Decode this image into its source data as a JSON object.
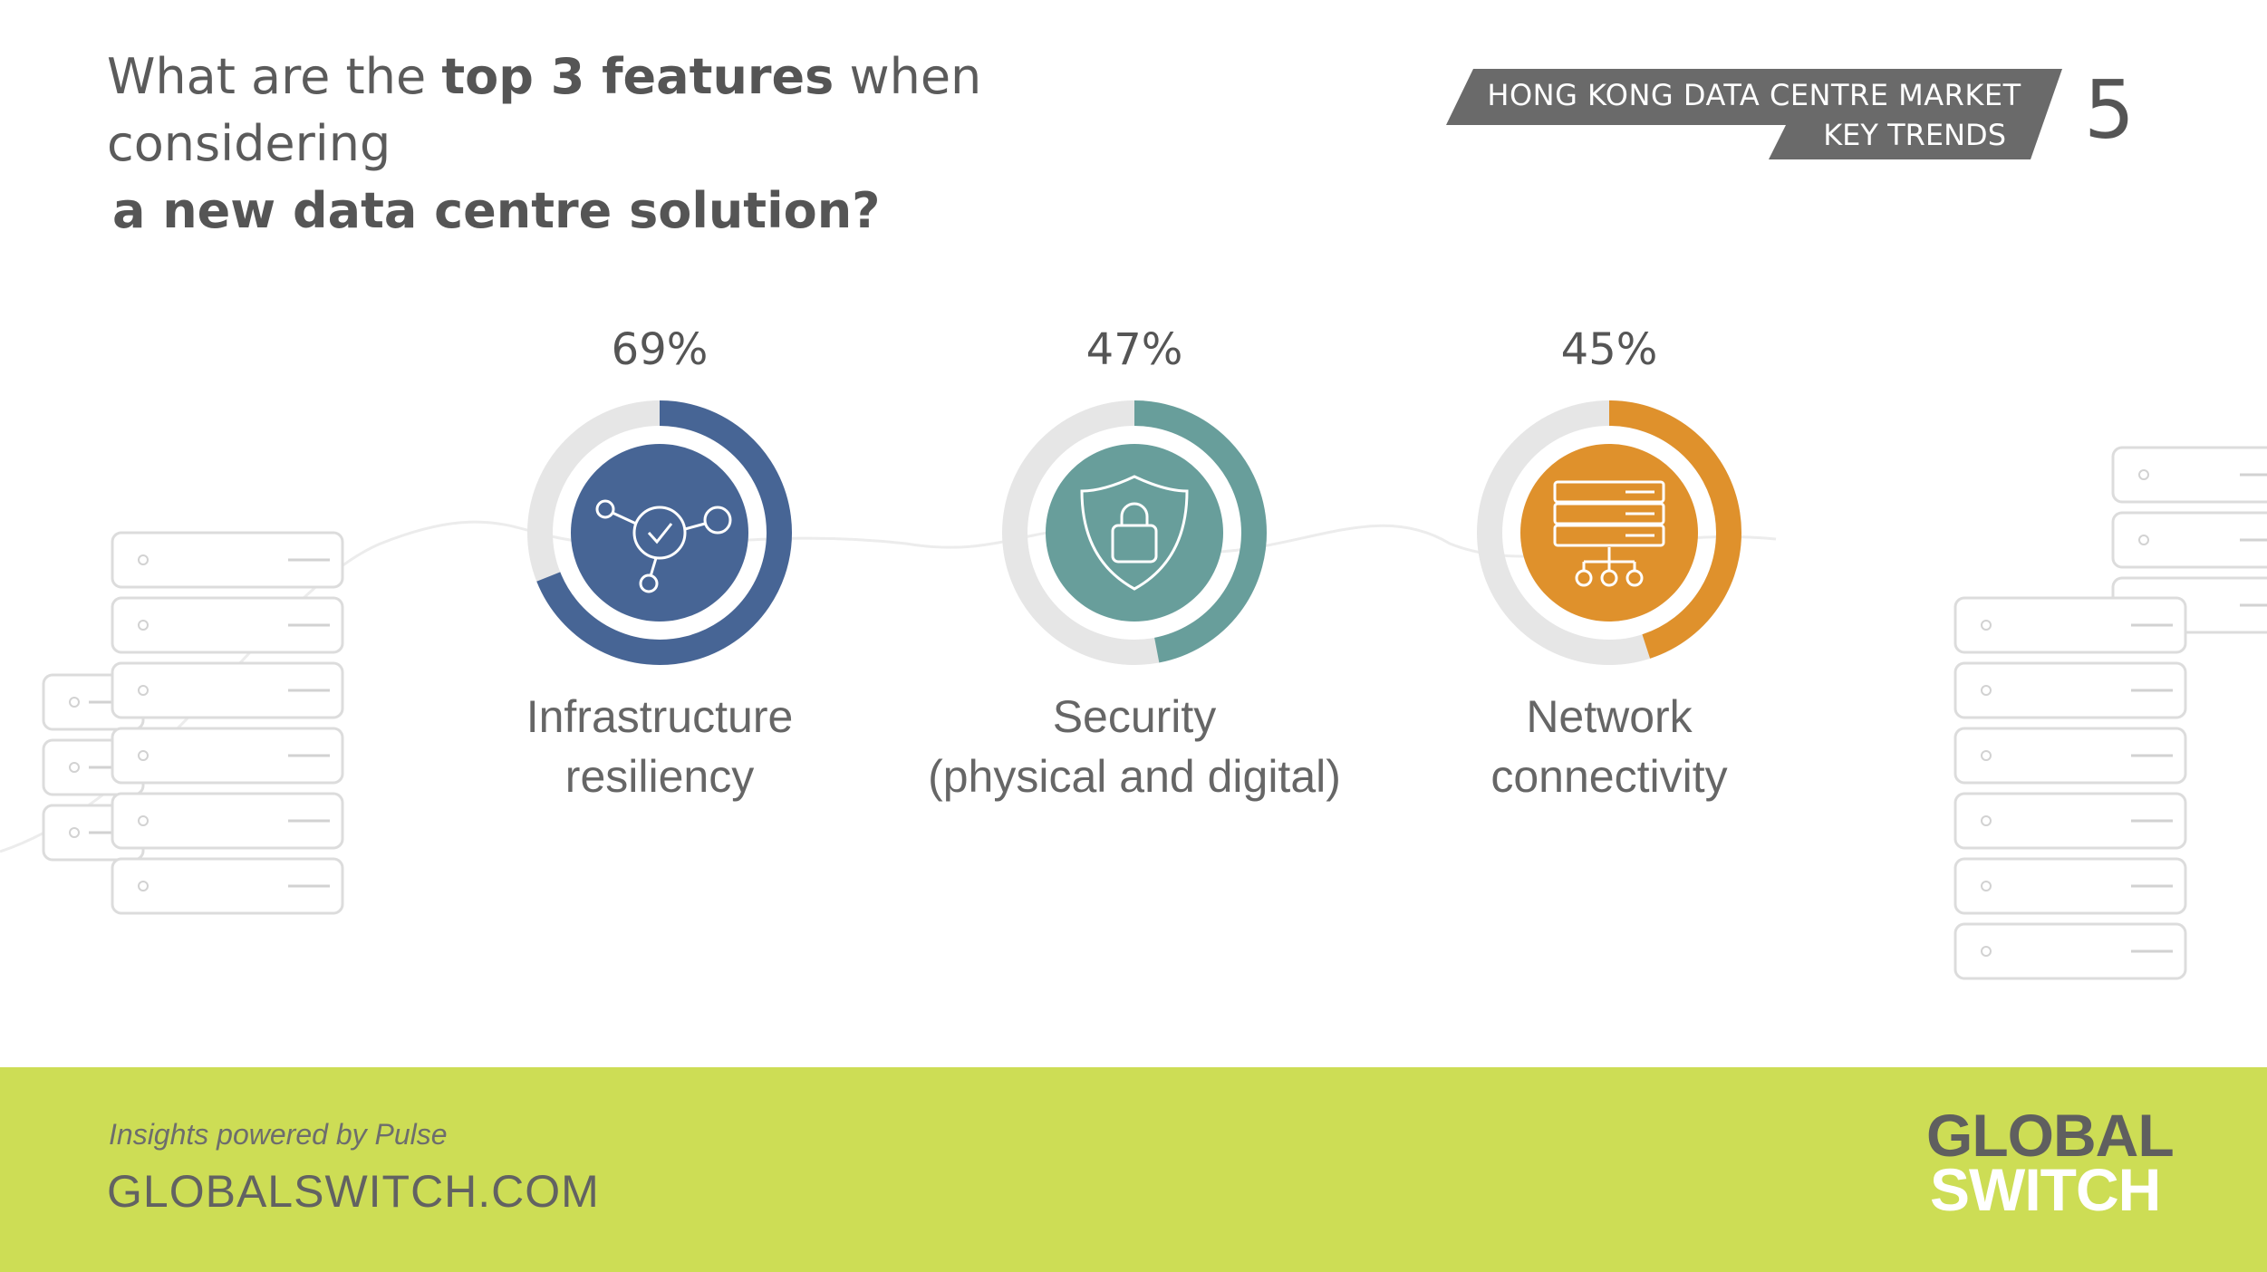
{
  "header": {
    "question_part1": "What are the ",
    "question_bold1": "top 3 features",
    "question_part2": " when considering",
    "question_bold2": "a new data centre solution?",
    "banner_line1": "HONG KONG DATA CENTRE MARKET",
    "banner_line2": "KEY TRENDS",
    "page_number": "5"
  },
  "chart_data": {
    "type": "donut",
    "title": "",
    "categories": [
      "Infrastructure resiliency",
      "Security (physical and digital)",
      "Network connectivity"
    ],
    "values": [
      69,
      47,
      45
    ],
    "value_labels": [
      "69%",
      "47%",
      "45%"
    ],
    "label_lines": [
      [
        "Infrastructure",
        "resiliency"
      ],
      [
        "Security",
        "(physical and digital)"
      ],
      [
        "Network",
        "connectivity"
      ]
    ],
    "icons": [
      "network-check-icon",
      "shield-lock-icon",
      "server-network-icon"
    ],
    "colors": [
      "#476595",
      "#689e9b",
      "#df912c"
    ],
    "track_color": "#e6e6e6",
    "max": 100
  },
  "footer": {
    "powered_by": "Insights powered by Pulse",
    "website": "GLOBALSWITCH.COM",
    "logo_line1": "GLOBAL",
    "logo_line2": "SWITCH",
    "background_color": "#cddd55"
  }
}
